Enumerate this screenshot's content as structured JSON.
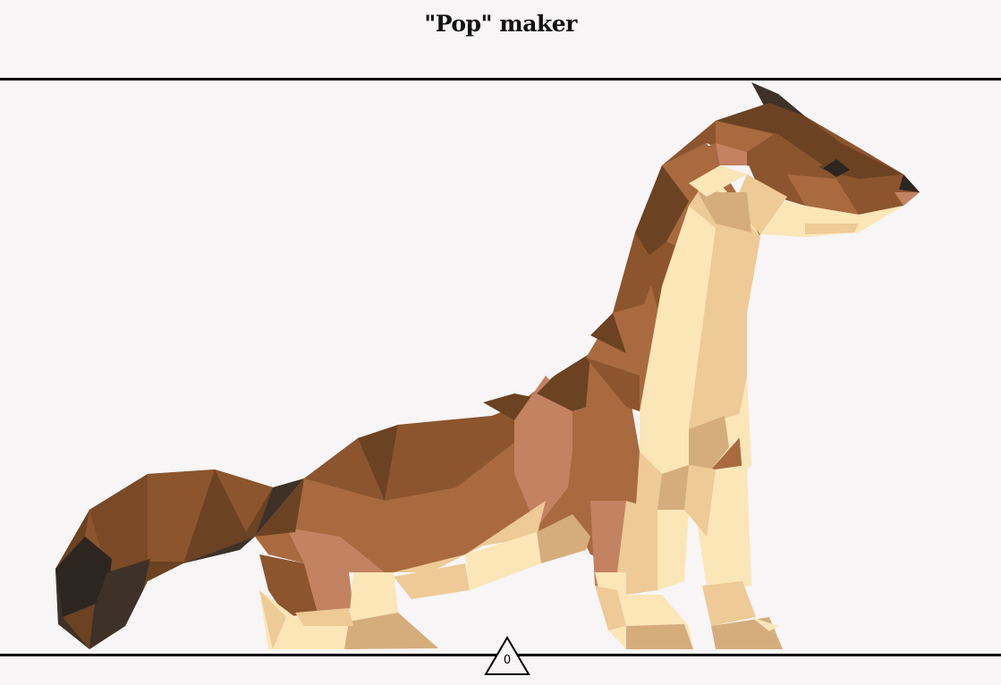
{
  "header": {
    "title": "\"Pop\" maker"
  },
  "pop_counter": {
    "value": "0",
    "icon": "triangle-icon"
  },
  "artwork": {
    "subject": "low-poly-weasel-illustration",
    "colors": {
      "background": "#f7f5f6",
      "fur_dark": "#6b4222",
      "fur_mid": "#8c552e",
      "fur_light": "#a96a3f",
      "fur_pink": "#c38262",
      "shadow": "#3e3127",
      "shadow_black": "#2c2520",
      "cream": "#fbe6b8",
      "cream_mid": "#edca96",
      "cream_dark": "#d5ad7d"
    }
  }
}
